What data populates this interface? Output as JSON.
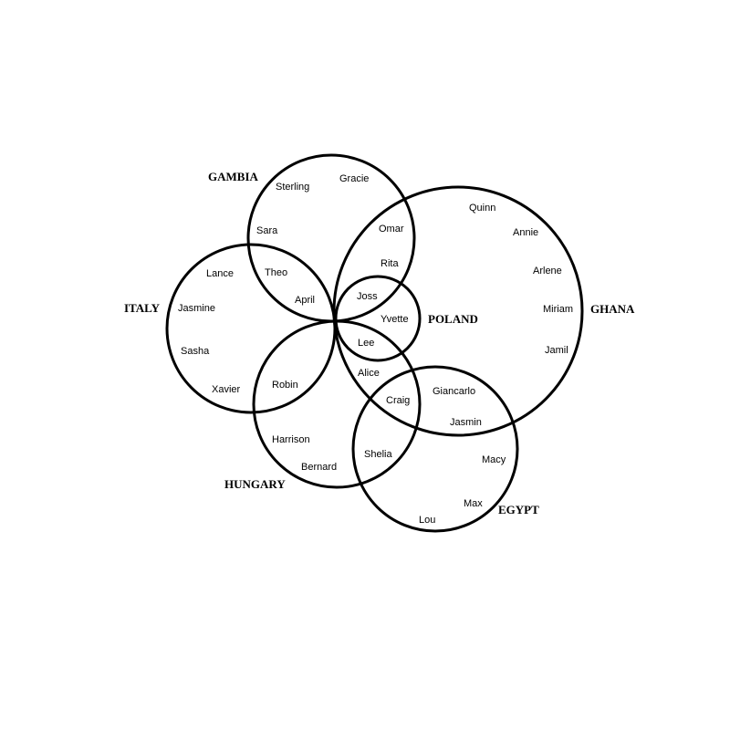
{
  "diagram": {
    "sets": [
      {
        "id": "gambia",
        "label": "GAMBIA"
      },
      {
        "id": "italy",
        "label": "ITALY"
      },
      {
        "id": "hungary",
        "label": "HUNGARY"
      },
      {
        "id": "poland",
        "label": "POLAND"
      },
      {
        "id": "ghana",
        "label": "GHANA"
      },
      {
        "id": "egypt",
        "label": "EGYPT"
      }
    ],
    "members": [
      {
        "id": "sterling",
        "name": "Sterling",
        "sets": [
          "GAMBIA"
        ]
      },
      {
        "id": "gracie",
        "name": "Gracie",
        "sets": [
          "GAMBIA"
        ]
      },
      {
        "id": "sara",
        "name": "Sara",
        "sets": [
          "GAMBIA"
        ]
      },
      {
        "id": "omar",
        "name": "Omar",
        "sets": [
          "GAMBIA",
          "GHANA"
        ]
      },
      {
        "id": "rita",
        "name": "Rita",
        "sets": [
          "GAMBIA",
          "GHANA"
        ]
      },
      {
        "id": "theo",
        "name": "Theo",
        "sets": [
          "GAMBIA",
          "ITALY"
        ]
      },
      {
        "id": "april",
        "name": "April",
        "sets": [
          "GAMBIA",
          "ITALY"
        ]
      },
      {
        "id": "lance",
        "name": "Lance",
        "sets": [
          "ITALY"
        ]
      },
      {
        "id": "jasmine",
        "name": "Jasmine",
        "sets": [
          "ITALY"
        ]
      },
      {
        "id": "sasha",
        "name": "Sasha",
        "sets": [
          "ITALY"
        ]
      },
      {
        "id": "xavier",
        "name": "Xavier",
        "sets": [
          "ITALY"
        ]
      },
      {
        "id": "robin",
        "name": "Robin",
        "sets": [
          "ITALY",
          "HUNGARY"
        ]
      },
      {
        "id": "harrison",
        "name": "Harrison",
        "sets": [
          "HUNGARY"
        ]
      },
      {
        "id": "bernard",
        "name": "Bernard",
        "sets": [
          "HUNGARY"
        ]
      },
      {
        "id": "shelia",
        "name": "Shelia",
        "sets": [
          "HUNGARY",
          "EGYPT"
        ]
      },
      {
        "id": "alice",
        "name": "Alice",
        "sets": [
          "HUNGARY",
          "GHANA"
        ]
      },
      {
        "id": "craig",
        "name": "Craig",
        "sets": [
          "HUNGARY",
          "GHANA",
          "EGYPT"
        ]
      },
      {
        "id": "joss",
        "name": "Joss",
        "sets": [
          "GAMBIA",
          "GHANA",
          "POLAND"
        ]
      },
      {
        "id": "yvette",
        "name": "Yvette",
        "sets": [
          "GHANA",
          "POLAND"
        ]
      },
      {
        "id": "lee",
        "name": "Lee",
        "sets": [
          "HUNGARY",
          "GHANA",
          "POLAND"
        ]
      },
      {
        "id": "quinn",
        "name": "Quinn",
        "sets": [
          "GHANA"
        ]
      },
      {
        "id": "annie",
        "name": "Annie",
        "sets": [
          "GHANA"
        ]
      },
      {
        "id": "arlene",
        "name": "Arlene",
        "sets": [
          "GHANA"
        ]
      },
      {
        "id": "miriam",
        "name": "Miriam",
        "sets": [
          "GHANA"
        ]
      },
      {
        "id": "jamil",
        "name": "Jamil",
        "sets": [
          "GHANA"
        ]
      },
      {
        "id": "giancarlo",
        "name": "Giancarlo",
        "sets": [
          "GHANA",
          "EGYPT"
        ]
      },
      {
        "id": "jasmin",
        "name": "Jasmin",
        "sets": [
          "GHANA",
          "EGYPT"
        ]
      },
      {
        "id": "macy",
        "name": "Macy",
        "sets": [
          "EGYPT"
        ]
      },
      {
        "id": "max",
        "name": "Max",
        "sets": [
          "EGYPT"
        ]
      },
      {
        "id": "lou",
        "name": "Lou",
        "sets": [
          "EGYPT"
        ]
      }
    ]
  }
}
